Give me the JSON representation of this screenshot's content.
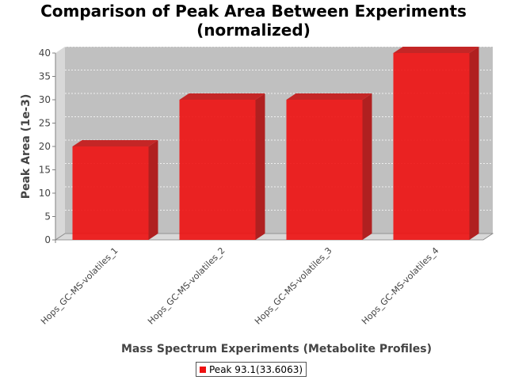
{
  "chart_data": {
    "type": "bar",
    "title_line1": "Comparison of Peak Area Between Experiments",
    "title_line2": "(normalized)",
    "xlabel": "Mass Spectrum Experiments (Metabolite Profiles)",
    "ylabel": "Peak Area (1e-3)",
    "categories": [
      "Hops_GC-MS-volatiles_1",
      "Hops_GC-MS-volatiles_2",
      "Hops_GC-MS-volatiles_3",
      "Hops_GC-MS-volatiles_4"
    ],
    "series": [
      {
        "name": "Peak 93.1(33.6063)",
        "values": [
          20,
          30,
          30,
          40
        ],
        "color": "#ee1111"
      }
    ],
    "ylim": [
      0,
      40
    ],
    "yticks": [
      0,
      5,
      10,
      15,
      20,
      25,
      30,
      35,
      40
    ],
    "grid": true,
    "legend_position": "bottom",
    "style": "3d-bar",
    "plot_background": "#c0c0c0"
  }
}
